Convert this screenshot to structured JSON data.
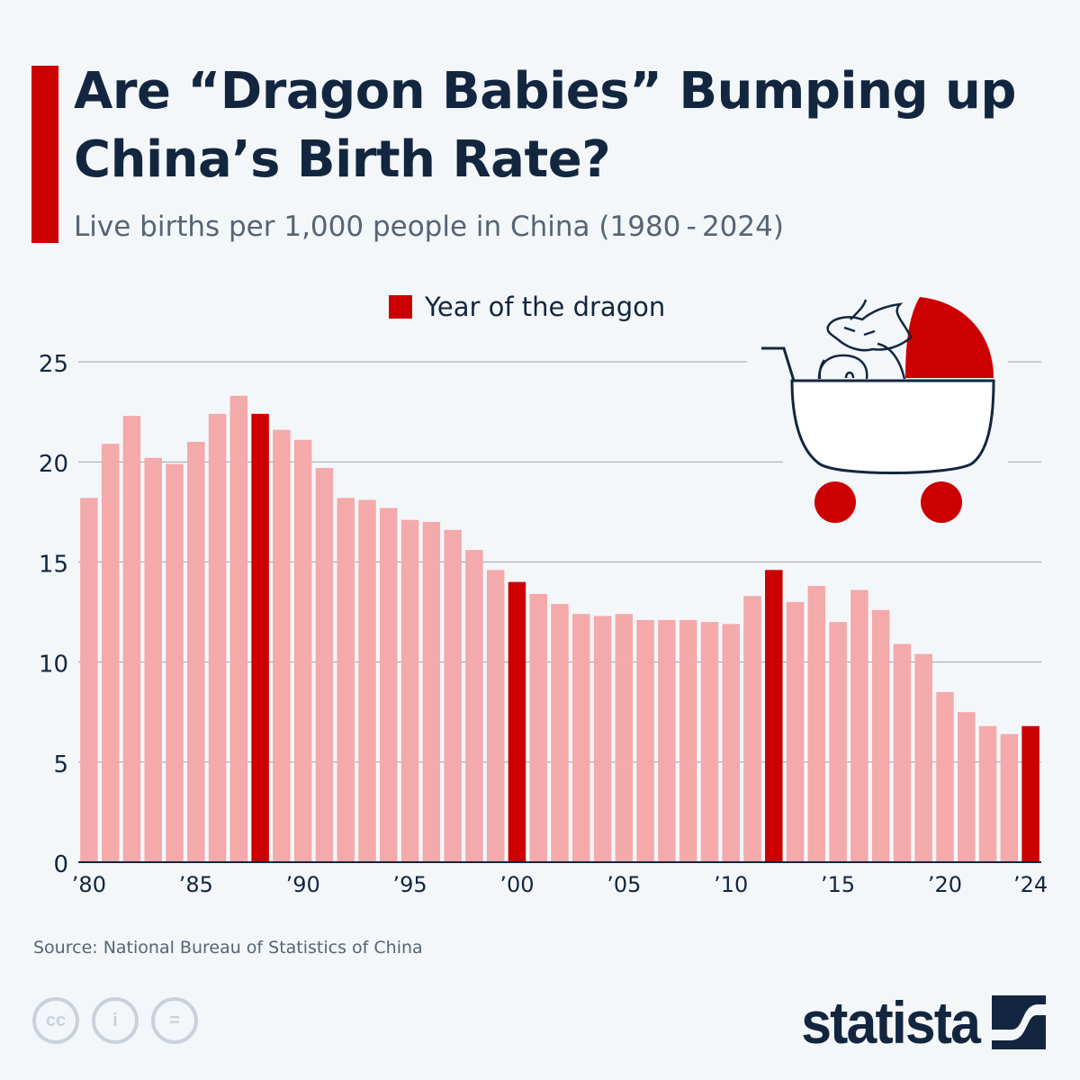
{
  "header": {
    "title": "Are “Dragon Babies” Bumping up China’s Birth Rate?",
    "subtitle": "Live births per 1,000 people in China (1980 - 2024)"
  },
  "legend": {
    "label": "Year of the dragon",
    "color": "#cc0000"
  },
  "colors": {
    "normal_bar": "#f4a9ab",
    "dragon_bar": "#cc0000",
    "grid": "#9aa3ad",
    "axis": "#13263f"
  },
  "chart_data": {
    "type": "bar",
    "title": "Live births per 1,000 people in China (1980-2024)",
    "xlabel": "",
    "ylabel": "Live births per 1,000 people",
    "ylim": [
      0,
      25
    ],
    "yticks": [
      0,
      5,
      10,
      15,
      20,
      25
    ],
    "grid": true,
    "legend_position": "top-center",
    "categories": [
      1980,
      1981,
      1982,
      1983,
      1984,
      1985,
      1986,
      1987,
      1988,
      1989,
      1990,
      1991,
      1992,
      1993,
      1994,
      1995,
      1996,
      1997,
      1998,
      1999,
      2000,
      2001,
      2002,
      2003,
      2004,
      2005,
      2006,
      2007,
      2008,
      2009,
      2010,
      2011,
      2012,
      2013,
      2014,
      2015,
      2016,
      2017,
      2018,
      2019,
      2020,
      2021,
      2022,
      2023,
      2024
    ],
    "values": [
      18.2,
      20.9,
      22.3,
      20.2,
      19.9,
      21.0,
      22.4,
      23.3,
      22.4,
      21.6,
      21.1,
      19.7,
      18.2,
      18.1,
      17.7,
      17.1,
      17.0,
      16.6,
      15.6,
      14.6,
      14.0,
      13.4,
      12.9,
      12.4,
      12.3,
      12.4,
      12.1,
      12.1,
      12.1,
      12.0,
      11.9,
      13.3,
      14.6,
      13.0,
      13.8,
      12.0,
      13.6,
      12.6,
      10.9,
      10.4,
      8.5,
      7.5,
      6.8,
      6.4,
      6.8
    ],
    "highlighted": [
      1988,
      2000,
      2012,
      2024
    ],
    "highlight_label": "Year of the dragon",
    "xtick_labels": [
      {
        "year": 1980,
        "label": "’80"
      },
      {
        "year": 1985,
        "label": "’85"
      },
      {
        "year": 1990,
        "label": "’90"
      },
      {
        "year": 1995,
        "label": "’95"
      },
      {
        "year": 2000,
        "label": "’00"
      },
      {
        "year": 2005,
        "label": "’05"
      },
      {
        "year": 2010,
        "label": "’10"
      },
      {
        "year": 2015,
        "label": "’15"
      },
      {
        "year": 2020,
        "label": "’20"
      },
      {
        "year": 2024,
        "label": "’24"
      }
    ]
  },
  "illustration": {
    "name": "dragon-in-baby-stroller"
  },
  "footer": {
    "source": "Source: National Bureau of Statistics of China",
    "license_icons": [
      "cc-icon",
      "attribution-icon",
      "no-derivatives-icon"
    ],
    "license_glyphs": [
      "cc",
      "i",
      "="
    ],
    "brand": "statista"
  }
}
